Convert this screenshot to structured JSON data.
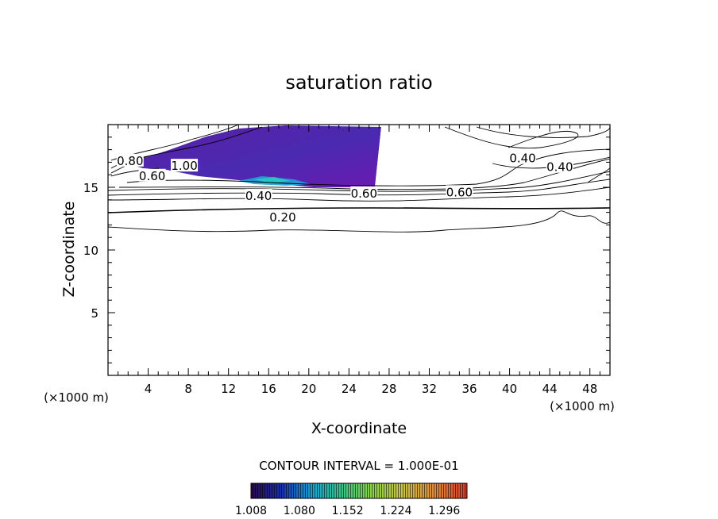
{
  "chart_data": {
    "type": "heatmap",
    "title": "saturation ratio",
    "xlabel": "X-coordinate",
    "ylabel": "Z-coordinate",
    "x_unit": "(×1000 m)",
    "y_unit": "(×1000 m)",
    "xlim": [
      0,
      50
    ],
    "ylim": [
      0,
      20
    ],
    "x_ticks": [
      4,
      8,
      12,
      16,
      20,
      24,
      28,
      32,
      36,
      40,
      44,
      48
    ],
    "y_ticks": [
      5,
      10,
      15
    ],
    "contour_interval_text": "CONTOUR INTERVAL = 1.000E-01",
    "contour_labels": [
      {
        "text": "0.80",
        "x": 2.2,
        "z": 17.1
      },
      {
        "text": "1.00",
        "x": 7.6,
        "z": 16.7
      },
      {
        "text": "0.60",
        "x": 4.4,
        "z": 15.9
      },
      {
        "text": "0.40",
        "x": 15.0,
        "z": 14.3
      },
      {
        "text": "0.20",
        "x": 17.4,
        "z": 12.6
      },
      {
        "text": "0.60",
        "x": 25.5,
        "z": 14.5
      },
      {
        "text": "0.60",
        "x": 35.0,
        "z": 14.6
      },
      {
        "text": "0.40",
        "x": 41.3,
        "z": 17.3
      },
      {
        "text": "0.40",
        "x": 45.0,
        "z": 16.6
      }
    ],
    "colorbar": {
      "ticks": [
        "1.008",
        "1.080",
        "1.152",
        "1.224",
        "1.296"
      ],
      "min": 1.008,
      "max": 1.33,
      "colors": [
        "#2a0a4a",
        "#1a2fae",
        "#19a0d4",
        "#38c48a",
        "#8bd24a",
        "#c9c24a",
        "#e08a3a",
        "#d83a2a"
      ]
    },
    "grid": false,
    "legend": "colorbar-bottom"
  }
}
